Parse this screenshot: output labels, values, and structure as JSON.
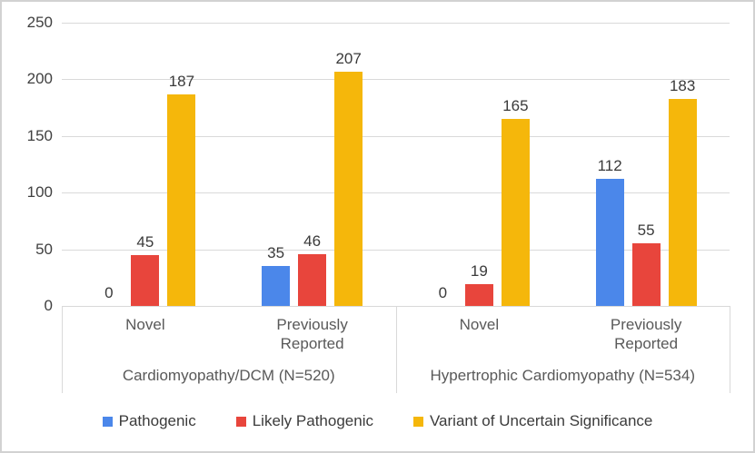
{
  "chart_data": {
    "type": "bar",
    "title": "",
    "xlabel": "",
    "ylabel": "",
    "ylim": [
      0,
      250
    ],
    "yticks": [
      0,
      50,
      100,
      150,
      200,
      250
    ],
    "grid": true,
    "legend_position": "bottom",
    "cluster_order": [
      "Cardiomyopathy/DCM Novel",
      "Cardiomyopathy/DCM Previously Reported",
      "Hypertrophic Cardiomyopathy Novel",
      "Hypertrophic Cardiomyopathy Previously Reported"
    ],
    "groups": [
      {
        "label": "Cardiomyopathy/DCM (N=520)",
        "categories": [
          "Novel",
          "Previously Reported"
        ]
      },
      {
        "label": "Hypertrophic Cardiomyopathy (N=534)",
        "categories": [
          "Novel",
          "Previously Reported"
        ]
      }
    ],
    "series": [
      {
        "name": "Pathogenic",
        "color": "#4b87ea",
        "values": [
          0,
          35,
          0,
          112
        ]
      },
      {
        "name": "Likely Pathogenic",
        "color": "#e8453c",
        "values": [
          45,
          46,
          19,
          55
        ]
      },
      {
        "name": "Variant of Uncertain Significance",
        "color": "#f5b70b",
        "values": [
          187,
          207,
          165,
          183
        ]
      }
    ],
    "colors": {
      "gridline": "#d9d9d9",
      "axis_text": "#404040",
      "data_label_text": "#3a3a3a",
      "category_text": "#595959",
      "frame_border": "#d2d2d2",
      "background": "#ffffff"
    }
  }
}
